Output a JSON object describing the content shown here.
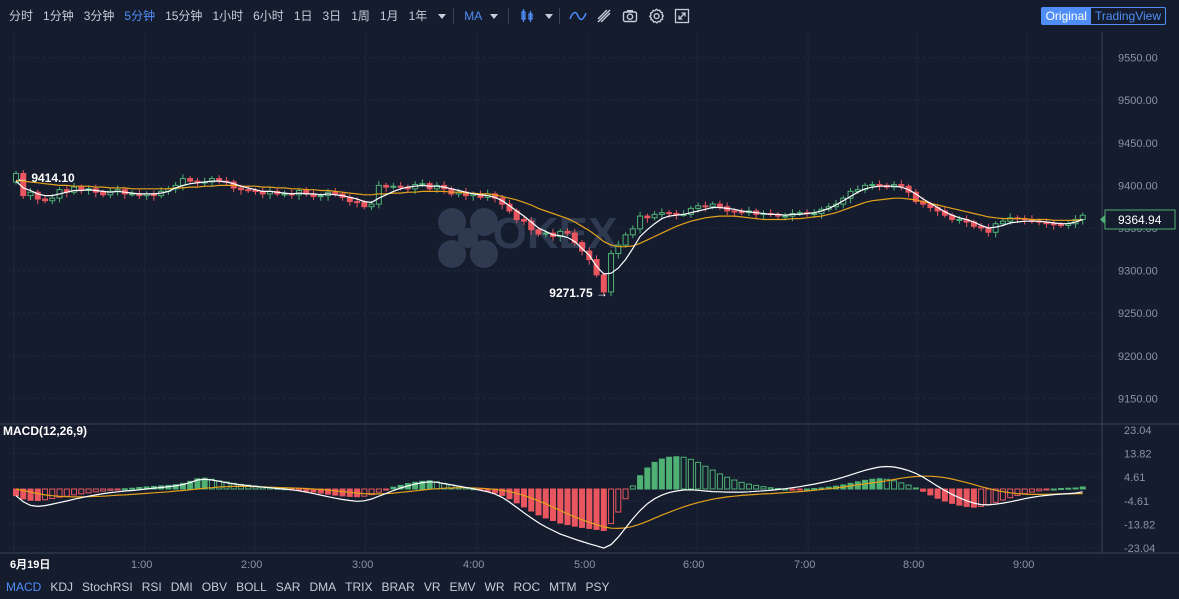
{
  "toolbar": {
    "intervals": [
      "分时",
      "1分钟",
      "3分钟",
      "5分钟",
      "15分钟",
      "1小时",
      "6小时",
      "1日",
      "3日",
      "1周",
      "1月",
      "1年"
    ],
    "active_interval": 3,
    "indicator": "MA",
    "view_original": "Original",
    "view_tradingview": "TradingView"
  },
  "bottom": {
    "indicators": [
      "MACD",
      "KDJ",
      "StochRSI",
      "RSI",
      "DMI",
      "OBV",
      "BOLL",
      "SAR",
      "DMA",
      "TRIX",
      "BRAR",
      "VR",
      "EMV",
      "WR",
      "ROC",
      "MTM",
      "PSY"
    ],
    "active": 0
  },
  "watermark": "OKEX",
  "colors": {
    "up": "#4fb173",
    "down": "#e9565f",
    "ma_white": "#ffffff",
    "ma_orange": "#e4a11b",
    "accent": "#4f8ef7"
  },
  "chart_data": {
    "type": "candlestick",
    "price_axis": {
      "ylim": [
        9120,
        9580
      ],
      "ticks": [
        "9550.00",
        "9500.00",
        "9450.00",
        "9400.00",
        "9350.00",
        "9300.00",
        "9250.00",
        "9200.00",
        "9150.00"
      ]
    },
    "time_axis": {
      "ticks": [
        "6月19日",
        "1:00",
        "2:00",
        "3:00",
        "4:00",
        "5:00",
        "6:00",
        "7:00",
        "8:00",
        "9:00"
      ]
    },
    "last_price": "9364.94",
    "high_label": "9414.10",
    "low_label": "9271.75",
    "candles_close": [
      9414,
      9388,
      9392,
      9384,
      9382,
      9385,
      9395,
      9392,
      9398,
      9394,
      9396,
      9392,
      9389,
      9393,
      9395,
      9390,
      9390,
      9388,
      9390,
      9388,
      9393,
      9396,
      9400,
      9408,
      9405,
      9403,
      9404,
      9408,
      9405,
      9404,
      9397,
      9395,
      9394,
      9393,
      9390,
      9393,
      9390,
      9390,
      9389,
      9394,
      9390,
      9387,
      9388,
      9392,
      9390,
      9386,
      9381,
      9380,
      9375,
      9378,
      9400,
      9398,
      9399,
      9398,
      9396,
      9401,
      9402,
      9396,
      9400,
      9396,
      9390,
      9392,
      9388,
      9390,
      9386,
      9390,
      9385,
      9378,
      9370,
      9360,
      9358,
      9348,
      9343,
      9344,
      9340,
      9346,
      9344,
      9333,
      9323,
      9313,
      9295,
      9275,
      9320,
      9330,
      9342,
      9349,
      9364,
      9362,
      9366,
      9368,
      9367,
      9366,
      9366,
      9373,
      9376,
      9375,
      9378,
      9375,
      9370,
      9369,
      9368,
      9370,
      9366,
      9367,
      9366,
      9364,
      9364,
      9367,
      9368,
      9367,
      9367,
      9372,
      9375,
      9378,
      9385,
      9393,
      9395,
      9400,
      9401,
      9400,
      9398,
      9401,
      9399,
      9392,
      9381,
      9378,
      9374,
      9370,
      9365,
      9360,
      9360,
      9357,
      9352,
      9350,
      9345,
      9355,
      9358,
      9362,
      9361,
      9360,
      9358,
      9357,
      9355,
      9354,
      9353,
      9355,
      9360,
      9365
    ],
    "ma_short": [
      9405,
      9397,
      9394,
      9390,
      9388,
      9388,
      9390,
      9392,
      9394,
      9394,
      9395,
      9394,
      9393,
      9392,
      9393,
      9392,
      9391,
      9390,
      9390,
      9390,
      9391,
      9393,
      9397,
      9400,
      9402,
      9403,
      9404,
      9405,
      9405,
      9404,
      9402,
      9399,
      9397,
      9395,
      9393,
      9393,
      9392,
      9391,
      9390,
      9391,
      9390,
      9390,
      9389,
      9390,
      9389,
      9388,
      9386,
      9384,
      9381,
      9380,
      9385,
      9389,
      9393,
      9396,
      9398,
      9399,
      9400,
      9399,
      9399,
      9398,
      9396,
      9394,
      9392,
      9390,
      9389,
      9388,
      9386,
      9382,
      9376,
      9370,
      9364,
      9357,
      9350,
      9346,
      9342,
      9341,
      9339,
      9334,
      9326,
      9318,
      9305,
      9296,
      9297,
      9303,
      9313,
      9326,
      9340,
      9348,
      9355,
      9361,
      9364,
      9365,
      9366,
      9368,
      9370,
      9372,
      9374,
      9374,
      9373,
      9372,
      9370,
      9369,
      9368,
      9367,
      9366,
      9366,
      9365,
      9366,
      9366,
      9367,
      9368,
      9370,
      9373,
      9377,
      9382,
      9387,
      9392,
      9396,
      9398,
      9399,
      9399,
      9399,
      9398,
      9395,
      9390,
      9384,
      9379,
      9374,
      9369,
      9365,
      9362,
      9360,
      9357,
      9353,
      9350,
      9351,
      9353,
      9356,
      9357,
      9358,
      9358,
      9358,
      9357,
      9356,
      9355,
      9355,
      9357,
      9360
    ],
    "ma_long": [
      9406,
      9405,
      9404,
      9403,
      9402,
      9401,
      9400,
      9400,
      9399,
      9399,
      9399,
      9398,
      9398,
      9397,
      9397,
      9397,
      9396,
      9396,
      9396,
      9396,
      9396,
      9396,
      9397,
      9397,
      9398,
      9398,
      9399,
      9399,
      9400,
      9400,
      9400,
      9399,
      9399,
      9399,
      9398,
      9398,
      9397,
      9397,
      9396,
      9396,
      9395,
      9395,
      9394,
      9394,
      9393,
      9392,
      9391,
      9390,
      9389,
      9389,
      9390,
      9390,
      9391,
      9391,
      9392,
      9392,
      9393,
      9393,
      9393,
      9393,
      9392,
      9392,
      9391,
      9391,
      9390,
      9390,
      9389,
      9387,
      9385,
      9383,
      9380,
      9377,
      9373,
      9370,
      9367,
      9364,
      9361,
      9357,
      9352,
      9347,
      9341,
      9334,
      9330,
      9328,
      9328,
      9329,
      9332,
      9336,
      9340,
      9344,
      9348,
      9352,
      9355,
      9358,
      9360,
      9362,
      9363,
      9364,
      9364,
      9364,
      9363,
      9362,
      9361,
      9360,
      9360,
      9360,
      9360,
      9361,
      9361,
      9362,
      9363,
      9364,
      9366,
      9368,
      9371,
      9374,
      9377,
      9380,
      9382,
      9383,
      9384,
      9385,
      9385,
      9384,
      9383,
      9381,
      9379,
      9377,
      9375,
      9373,
      9371,
      9369,
      9367,
      9365,
      9363,
      9362,
      9361,
      9361,
      9361,
      9361,
      9360,
      9360,
      9360,
      9359,
      9359,
      9359,
      9359,
      9360
    ]
  },
  "macd": {
    "title": "MACD(12,26,9)",
    "ylim": [
      -25,
      25
    ],
    "ticks": [
      "23.04",
      "13.82",
      "4.61",
      "-4.61",
      "-13.82",
      "-23.04"
    ],
    "hist": [
      -2.6,
      -3.9,
      -4.4,
      -4.5,
      -4.2,
      -3.7,
      -3.2,
      -2.8,
      -2.3,
      -1.9,
      -1.5,
      -1.1,
      -0.8,
      -0.5,
      -0.2,
      0.1,
      0.3,
      0.6,
      0.8,
      1,
      1.2,
      1.4,
      1.7,
      2.2,
      3,
      4,
      4.2,
      3.8,
      3.2,
      2.7,
      2.2,
      1.8,
      1.5,
      1.2,
      0.9,
      0.6,
      0.3,
      0.1,
      -0.1,
      -0.4,
      -0.8,
      -1.2,
      -1.6,
      -2,
      -2.4,
      -2.7,
      -2.9,
      -3,
      -2.8,
      -2.2,
      -1.2,
      -0.2,
      0.7,
      1.4,
      2.1,
      2.6,
      3,
      3.2,
      2.8,
      2.2,
      1.6,
      1.1,
      0.6,
      0.1,
      -0.4,
      -0.9,
      -1.5,
      -2.5,
      -3.8,
      -5.4,
      -7,
      -8.6,
      -10.1,
      -11.3,
      -12.3,
      -13.3,
      -13.9,
      -14.5,
      -15,
      -15.4,
      -15.8,
      -16.2,
      -13.5,
      -9,
      -3.8,
      1.2,
      5.2,
      8.2,
      10.4,
      11.7,
      12.4,
      12.6,
      12.4,
      11.6,
      10.4,
      8.9,
      7.4,
      5.9,
      4.6,
      3.5,
      2.6,
      1.9,
      1.4,
      0.9,
      0.5,
      0.2,
      0,
      -0.1,
      -0.1,
      0,
      0.2,
      0.4,
      0.7,
      1.1,
      1.6,
      2.2,
      2.8,
      3.4,
      3.8,
      4,
      3.8,
      3.2,
      2.4,
      1.5,
      0.4,
      -0.9,
      -2.3,
      -3.6,
      -4.7,
      -5.6,
      -6.3,
      -6.8,
      -7.1,
      -6.8,
      -6.1,
      -5.2,
      -4.3,
      -3.4,
      -2.5,
      -1.8,
      -1.2,
      -0.7,
      -0.3,
      0,
      0.2,
      0.3,
      0.4,
      0.8
    ],
    "dif": [
      -2.6,
      -5,
      -6.4,
      -6.8,
      -6.5,
      -5.9,
      -5.3,
      -4.7,
      -4,
      -3.4,
      -2.8,
      -2.3,
      -1.8,
      -1.4,
      -1.1,
      -0.8,
      -0.6,
      -0.3,
      0,
      0.3,
      0.6,
      0.9,
      1.2,
      1.7,
      2.5,
      3.5,
      3.8,
      3.5,
      3,
      2.5,
      2,
      1.6,
      1.3,
      1,
      0.7,
      0.5,
      0.2,
      0,
      -0.3,
      -0.7,
      -1.2,
      -1.8,
      -2.4,
      -3,
      -3.6,
      -4.1,
      -4.5,
      -4.8,
      -4.6,
      -3.9,
      -2.8,
      -1.7,
      -0.6,
      0.4,
      1.2,
      1.9,
      2.5,
      2.8,
      2.6,
      2.1,
      1.6,
      1.1,
      0.6,
      0.1,
      -0.5,
      -1.1,
      -1.9,
      -3.3,
      -5.1,
      -7.2,
      -9.3,
      -11.3,
      -13.2,
      -14.8,
      -16.2,
      -17.6,
      -18.6,
      -19.6,
      -20.5,
      -21.4,
      -22.2,
      -23.1,
      -21.7,
      -18.8,
      -15.2,
      -11.6,
      -8.4,
      -5.8,
      -3.8,
      -2.4,
      -1.4,
      -0.8,
      -0.4,
      -0.3,
      -0.5,
      -0.8,
      -1,
      -1.1,
      -1.2,
      -1.2,
      -1.2,
      -1.1,
      -0.9,
      -0.7,
      -0.5,
      -0.2,
      0.1,
      0.5,
      0.9,
      1.4,
      1.9,
      2.5,
      3.1,
      3.8,
      4.6,
      5.5,
      6.4,
      7.3,
      8,
      8.6,
      8.8,
      8.6,
      8,
      7.2,
      6.1,
      4.6,
      2.9,
      1.1,
      -0.6,
      -2.1,
      -3.4,
      -4.6,
      -5.5,
      -6.1,
      -6.2,
      -5.9,
      -5.5,
      -5,
      -4.4,
      -3.8,
      -3.3,
      -2.8,
      -2.5,
      -2.2,
      -2,
      -1.8,
      -1.6,
      -1.1
    ],
    "dea": [
      0,
      -0.6,
      -1.2,
      -1.8,
      -2.3,
      -2.6,
      -2.9,
      -3,
      -3.1,
      -3.1,
      -3,
      -2.9,
      -2.8,
      -2.6,
      -2.4,
      -2.3,
      -2.1,
      -1.9,
      -1.7,
      -1.5,
      -1.3,
      -1.1,
      -0.8,
      -0.6,
      -0.3,
      0,
      0.3,
      0.5,
      0.8,
      0.9,
      1,
      1,
      1,
      0.9,
      0.8,
      0.7,
      0.6,
      0.5,
      0.4,
      0.3,
      0.2,
      0,
      -0.2,
      -0.4,
      -0.7,
      -1,
      -1.3,
      -1.6,
      -1.8,
      -1.9,
      -1.9,
      -1.8,
      -1.6,
      -1.3,
      -1,
      -0.7,
      -0.4,
      -0.1,
      0.1,
      0.3,
      0.4,
      0.5,
      0.5,
      0.4,
      0.3,
      0.1,
      -0.1,
      -0.5,
      -1,
      -1.7,
      -2.5,
      -3.5,
      -4.6,
      -5.8,
      -7.1,
      -8.4,
      -9.7,
      -10.9,
      -12,
      -13,
      -13.9,
      -14.8,
      -15.3,
      -15.4,
      -15.2,
      -14.6,
      -13.7,
      -12.6,
      -11.4,
      -10.2,
      -9.1,
      -8,
      -7,
      -6.1,
      -5.3,
      -4.6,
      -4,
      -3.5,
      -3.1,
      -2.8,
      -2.5,
      -2.3,
      -2.1,
      -1.9,
      -1.8,
      -1.6,
      -1.4,
      -1.2,
      -1,
      -0.8,
      -0.5,
      -0.2,
      0.1,
      0.4,
      0.8,
      1.2,
      1.6,
      2,
      2.4,
      2.8,
      3.2,
      3.7,
      4.2,
      4.6,
      4.9,
      5,
      5,
      4.8,
      4.4,
      3.9,
      3.2,
      2.5,
      1.7,
      0.9,
      0.2,
      -0.5,
      -1,
      -1.5,
      -1.8,
      -2,
      -2.1,
      -2.1,
      -2.1,
      -2,
      -1.9,
      -1.9,
      -1.8,
      -1.8
    ]
  }
}
